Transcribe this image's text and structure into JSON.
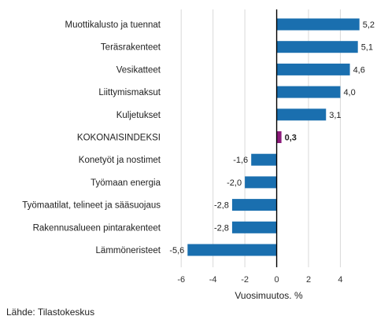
{
  "chart_data": {
    "type": "bar",
    "orientation": "horizontal",
    "categories": [
      "Muottikalusto ja tuennat",
      "Teräsrakenteet",
      "Vesikatteet",
      "Liittymismaksut",
      "Kuljetukset",
      "KOKONAISINDEKSI",
      "Konetyöt ja nostimet",
      "Työmaan energia",
      "Työmaatilat, telineet ja sääsuojaus",
      "Rakennusalueen pintarakenteet",
      "Lämmöneristeet"
    ],
    "values": [
      5.2,
      5.1,
      4.6,
      4.0,
      3.1,
      0.3,
      -1.6,
      -2.0,
      -2.8,
      -2.8,
      -5.6
    ],
    "value_labels": [
      "5,2",
      "5,1",
      "4,6",
      "4,0",
      "3,1",
      "0,3",
      "-1,6",
      "-2,0",
      "-2,8",
      "-2,8",
      "-5,6"
    ],
    "highlight_index": 5,
    "xlabel": "Vuosimuutos, %",
    "xlim": [
      -7,
      6.5
    ],
    "xticks": [
      -6,
      -4,
      -2,
      0,
      2,
      4
    ],
    "xtick_labels": [
      "-6",
      "-4",
      "-2",
      "0",
      "2",
      "4"
    ],
    "grid": true,
    "colors": {
      "bar": "#1a6faf",
      "highlight": "#8b1a7a",
      "grid": "#d9d9d9",
      "zero_line": "#000000"
    }
  },
  "source": "Lähde: Tilastokeskus"
}
